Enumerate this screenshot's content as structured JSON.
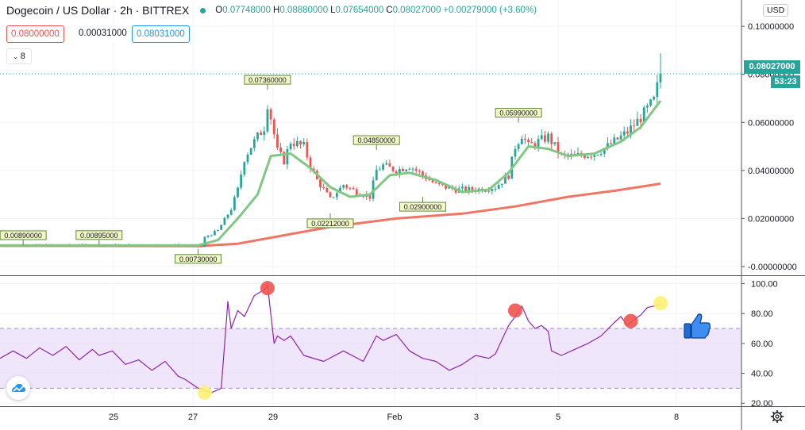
{
  "header": {
    "symbol": "Dogecoin / US Dollar · 2h · BITTREX",
    "open_label": "O",
    "open": "0.07748000",
    "high_label": "H",
    "high": "0.08880000",
    "low_label": "L",
    "low": "0.07654000",
    "close_label": "C",
    "close": "0.08027000",
    "change": "+0.00279000 (+3.60%)"
  },
  "trading": {
    "sell_price": "0.08000000",
    "spread": "0.00031000",
    "buy_price": "0.08031000"
  },
  "indicators_collapse": {
    "count": "8"
  },
  "price_axis": {
    "currency": "USD",
    "current_price": "0.08027000",
    "countdown": "53:23"
  },
  "colors": {
    "up": "#26a69a",
    "down": "#ef5350",
    "ema_fast": "#81c784",
    "ma_slow": "#ef7565",
    "rsi_line": "#8e24aa",
    "rsi_band": "#e9dcfa",
    "marker_red": "#ef5350",
    "marker_yellow": "#fff176"
  },
  "icons": {
    "logo": "tradingview-cloud-icon",
    "settings": "gear-icon",
    "annotation": "thumbs-up-icon"
  },
  "chart_data": [
    {
      "type": "candlestick",
      "pair": "DOGE/USD",
      "timeframe": "2h",
      "x_ticks": [
        "25",
        "27",
        "29",
        "Feb",
        "3",
        "5",
        "8"
      ],
      "y_ticks": [
        "0.10000000",
        "0.08000000",
        "0.06000000",
        "0.04000000",
        "0.02000000",
        "-0.00000000"
      ],
      "ylim": [
        -0.003,
        0.105
      ],
      "grid": true,
      "series": [
        {
          "name": "",
          "kind": "candles",
          "close_path": [
            [
              0,
              0.0089
            ],
            [
              0.22,
              0.0089
            ],
            [
              0.27,
              0.0089
            ],
            [
              0.29,
              0.0087
            ],
            [
              0.305,
              0.0082
            ],
            [
              0.31,
              0.012
            ],
            [
              0.33,
              0.015
            ],
            [
              0.35,
              0.024
            ],
            [
              0.36,
              0.032
            ],
            [
              0.37,
              0.045
            ],
            [
              0.38,
              0.05
            ],
            [
              0.4,
              0.058
            ],
            [
              0.405,
              0.068
            ],
            [
              0.41,
              0.062
            ],
            [
              0.42,
              0.048
            ],
            [
              0.43,
              0.044
            ],
            [
              0.44,
              0.052
            ],
            [
              0.46,
              0.05
            ],
            [
              0.47,
              0.042
            ],
            [
              0.48,
              0.036
            ],
            [
              0.49,
              0.032
            ],
            [
              0.5,
              0.028
            ],
            [
              0.52,
              0.034
            ],
            [
              0.54,
              0.031
            ],
            [
              0.56,
              0.029
            ],
            [
              0.57,
              0.04
            ],
            [
              0.58,
              0.042
            ],
            [
              0.6,
              0.04
            ],
            [
              0.62,
              0.042
            ],
            [
              0.64,
              0.038
            ],
            [
              0.66,
              0.034
            ],
            [
              0.69,
              0.032
            ],
            [
              0.72,
              0.032
            ],
            [
              0.75,
              0.033
            ],
            [
              0.77,
              0.038
            ],
            [
              0.78,
              0.05
            ],
            [
              0.79,
              0.055
            ],
            [
              0.8,
              0.05
            ],
            [
              0.83,
              0.054
            ],
            [
              0.85,
              0.046
            ],
            [
              0.87,
              0.046
            ],
            [
              0.9,
              0.047
            ],
            [
              0.92,
              0.05
            ],
            [
              0.95,
              0.056
            ],
            [
              0.97,
              0.062
            ],
            [
              0.99,
              0.069
            ],
            [
              1.0,
              0.08027
            ]
          ]
        },
        {
          "name": "",
          "kind": "line",
          "path": [
            [
              0,
              0.0088
            ],
            [
              0.3,
              0.0088
            ],
            [
              0.33,
              0.011
            ],
            [
              0.36,
              0.02
            ],
            [
              0.39,
              0.03
            ],
            [
              0.41,
              0.046
            ],
            [
              0.44,
              0.047
            ],
            [
              0.47,
              0.041
            ],
            [
              0.5,
              0.033
            ],
            [
              0.53,
              0.029
            ],
            [
              0.56,
              0.03
            ],
            [
              0.59,
              0.038
            ],
            [
              0.62,
              0.039
            ],
            [
              0.66,
              0.036
            ],
            [
              0.7,
              0.031
            ],
            [
              0.74,
              0.032
            ],
            [
              0.77,
              0.039
            ],
            [
              0.8,
              0.05
            ],
            [
              0.83,
              0.049
            ],
            [
              0.86,
              0.046
            ],
            [
              0.9,
              0.047
            ],
            [
              0.94,
              0.052
            ],
            [
              0.97,
              0.058
            ],
            [
              1.0,
              0.069
            ]
          ]
        },
        {
          "name": "",
          "kind": "line",
          "path": [
            [
              0,
              0.0086
            ],
            [
              0.3,
              0.0085
            ],
            [
              0.36,
              0.0095
            ],
            [
              0.42,
              0.0125
            ],
            [
              0.5,
              0.0165
            ],
            [
              0.6,
              0.02
            ],
            [
              0.7,
              0.022
            ],
            [
              0.78,
              0.025
            ],
            [
              0.86,
              0.029
            ],
            [
              0.93,
              0.0315
            ],
            [
              1.0,
              0.0345
            ]
          ]
        }
      ],
      "annotations": [
        {
          "x": 0.035,
          "y": 0.0089,
          "label": "0.00890000",
          "pos": "above"
        },
        {
          "x": 0.15,
          "y": 0.00895,
          "label": "0.00895000",
          "pos": "above"
        },
        {
          "x": 0.3,
          "y": 0.0073,
          "label": "0.00730000",
          "pos": "below"
        },
        {
          "x": 0.405,
          "y": 0.0736,
          "label": "0.07360000",
          "pos": "above"
        },
        {
          "x": 0.5,
          "y": 0.02212,
          "label": "0.02212000",
          "pos": "below"
        },
        {
          "x": 0.57,
          "y": 0.0485,
          "label": "0.04850000",
          "pos": "above"
        },
        {
          "x": 0.64,
          "y": 0.029,
          "label": "0.02900000",
          "pos": "below"
        },
        {
          "x": 0.785,
          "y": 0.0599,
          "label": "0.05990000",
          "pos": "above"
        }
      ]
    },
    {
      "type": "line",
      "indicator": "RSI",
      "y_ticks": [
        "100.00",
        "80.00",
        "60.00",
        "40.00",
        "20.00"
      ],
      "ylim": [
        18,
        104
      ],
      "band": [
        30,
        70
      ],
      "series": [
        {
          "name": "",
          "path": [
            [
              0,
              50
            ],
            [
              0.02,
              55
            ],
            [
              0.04,
              50
            ],
            [
              0.06,
              57
            ],
            [
              0.08,
              52
            ],
            [
              0.1,
              58
            ],
            [
              0.12,
              49
            ],
            [
              0.14,
              56
            ],
            [
              0.15,
              52
            ],
            [
              0.17,
              55
            ],
            [
              0.19,
              46
            ],
            [
              0.21,
              49
            ],
            [
              0.23,
              42
            ],
            [
              0.25,
              48
            ],
            [
              0.27,
              38
            ],
            [
              0.28,
              36
            ],
            [
              0.3,
              30
            ],
            [
              0.32,
              27
            ],
            [
              0.335,
              30
            ],
            [
              0.345,
              88
            ],
            [
              0.35,
              70
            ],
            [
              0.36,
              82
            ],
            [
              0.37,
              78
            ],
            [
              0.385,
              92
            ],
            [
              0.4,
              96
            ],
            [
              0.405,
              99
            ],
            [
              0.415,
              60
            ],
            [
              0.42,
              65
            ],
            [
              0.43,
              62
            ],
            [
              0.44,
              65
            ],
            [
              0.46,
              52
            ],
            [
              0.49,
              48
            ],
            [
              0.52,
              55
            ],
            [
              0.55,
              48
            ],
            [
              0.57,
              65
            ],
            [
              0.58,
              62
            ],
            [
              0.6,
              66
            ],
            [
              0.62,
              55
            ],
            [
              0.64,
              50
            ],
            [
              0.66,
              48
            ],
            [
              0.68,
              42
            ],
            [
              0.7,
              46
            ],
            [
              0.72,
              52
            ],
            [
              0.74,
              50
            ],
            [
              0.75,
              53
            ],
            [
              0.77,
              72
            ],
            [
              0.78,
              78
            ],
            [
              0.79,
              85
            ],
            [
              0.8,
              75
            ],
            [
              0.81,
              70
            ],
            [
              0.82,
              72
            ],
            [
              0.83,
              68
            ],
            [
              0.835,
              55
            ],
            [
              0.85,
              52
            ],
            [
              0.87,
              56
            ],
            [
              0.89,
              60
            ],
            [
              0.91,
              65
            ],
            [
              0.93,
              74
            ],
            [
              0.94,
              78
            ],
            [
              0.95,
              72
            ],
            [
              0.96,
              76
            ],
            [
              0.97,
              79
            ],
            [
              0.98,
              84
            ],
            [
              1.0,
              86
            ]
          ]
        }
      ],
      "markers": [
        {
          "x": 0.31,
          "y": 27,
          "color": "yellow"
        },
        {
          "x": 0.405,
          "y": 97,
          "color": "red"
        },
        {
          "x": 0.78,
          "y": 82,
          "color": "red"
        },
        {
          "x": 0.955,
          "y": 75,
          "color": "red"
        },
        {
          "x": 1.0,
          "y": 87,
          "color": "yellow"
        }
      ]
    }
  ]
}
